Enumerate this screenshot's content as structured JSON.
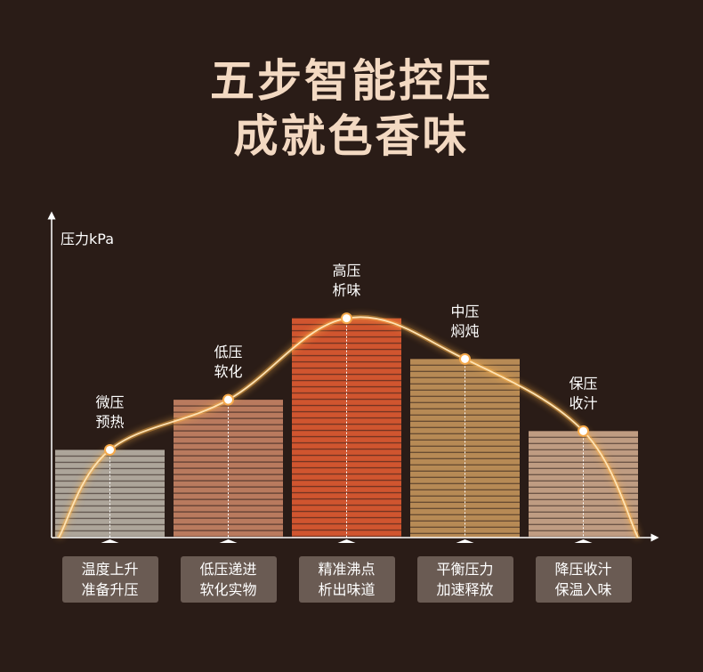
{
  "title_line1": "五步智能控压",
  "title_line2": "成就色香味",
  "chart_data": {
    "type": "bar",
    "ylabel": "压力kPa",
    "xlabel": "",
    "ylim": [
      0,
      100
    ],
    "categories": [
      {
        "line1": "微压",
        "line2": "预热"
      },
      {
        "line1": "低压",
        "line2": "软化"
      },
      {
        "line1": "高压",
        "line2": "析味"
      },
      {
        "line1": "中压",
        "line2": "焖炖"
      },
      {
        "line1": "保压",
        "line2": "收汁"
      }
    ],
    "values": [
      28,
      44,
      70,
      57,
      34
    ],
    "colors": [
      "#ada59a",
      "#b97a5e",
      "#d0552f",
      "#b78a55",
      "#bf9c82"
    ],
    "curve_color": "#ffb347"
  },
  "stages": [
    {
      "line1": "温度上升",
      "line2": "准备升压"
    },
    {
      "line1": "低压递进",
      "line2": "软化实物"
    },
    {
      "line1": "精准沸点",
      "line2": "析出味道"
    },
    {
      "line1": "平衡压力",
      "line2": "加速释放"
    },
    {
      "line1": "降压收汁",
      "line2": "保温入味"
    }
  ]
}
